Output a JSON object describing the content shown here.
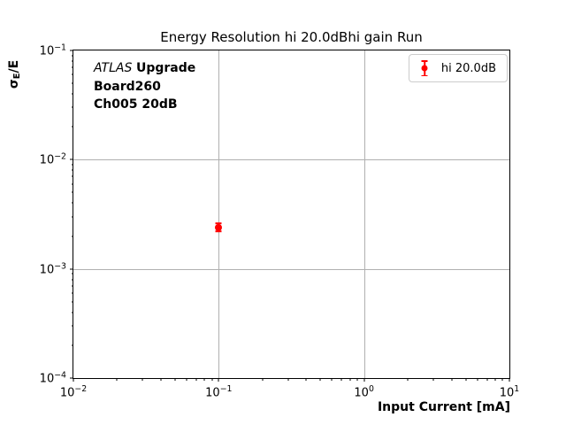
{
  "chart_data": {
    "type": "scatter",
    "title": "Energy Resolution hi 20.0dBhi gain Run",
    "xlabel": "Input Current [mA]",
    "ylabel": "sigma_E/E",
    "ylabel_parts": {
      "symbol": "σ",
      "subscript": "E",
      "suffix": "/E"
    },
    "xscale": "log",
    "yscale": "log",
    "xlim": [
      0.01,
      10
    ],
    "ylim": [
      0.0001,
      0.1
    ],
    "x_tick_exponents": [
      -2,
      -1,
      0,
      1
    ],
    "y_tick_exponents": [
      -1,
      -2,
      -3,
      -4
    ],
    "grid": true,
    "grid_color": "#b0b0b0",
    "axis_color": "#000000",
    "legend_position": "upper right",
    "legend_border_color": "#cccccc",
    "series": [
      {
        "name": "hi 20.0dB",
        "color": "#ff0000",
        "marker": "o",
        "x": [
          0.1
        ],
        "y": [
          0.0024
        ],
        "yerr": [
          0.0002
        ]
      }
    ],
    "annotation": {
      "line1_italic": "ATLAS",
      "line1_bold": "Upgrade",
      "line2": "Board260",
      "line3": "Ch005 20dB"
    }
  }
}
